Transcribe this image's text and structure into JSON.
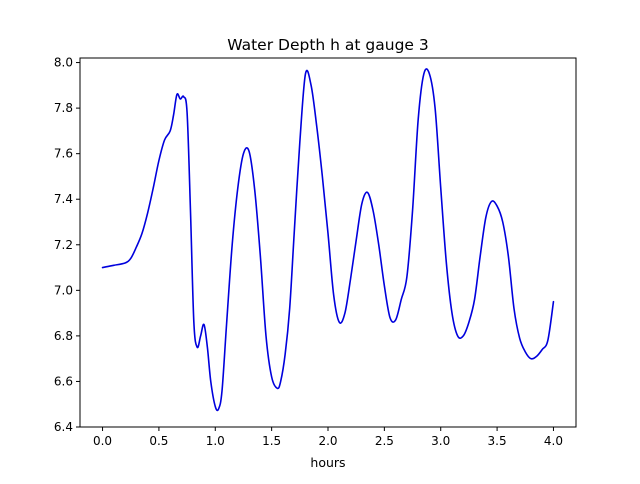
{
  "chart_data": {
    "type": "line",
    "title": "Water Depth h at gauge 3",
    "xlabel": "hours",
    "ylabel": "",
    "xlim": [
      -0.2,
      4.2
    ],
    "ylim": [
      6.4,
      8.02
    ],
    "xticks": [
      0.0,
      0.5,
      1.0,
      1.5,
      2.0,
      2.5,
      3.0,
      3.5,
      4.0
    ],
    "xtick_labels": [
      "0.0",
      "0.5",
      "1.0",
      "1.5",
      "2.0",
      "2.5",
      "3.0",
      "3.5",
      "4.0"
    ],
    "yticks": [
      6.4,
      6.6,
      6.8,
      7.0,
      7.2,
      7.4,
      7.6,
      7.8,
      8.0
    ],
    "ytick_labels": [
      "6.4",
      "6.6",
      "6.8",
      "7.0",
      "7.2",
      "7.4",
      "7.6",
      "7.8",
      "8.0"
    ],
    "grid": false,
    "legend": "none",
    "series": [
      {
        "color": "#0000dd",
        "x": [
          0.0,
          0.05,
          0.1,
          0.2,
          0.25,
          0.3,
          0.35,
          0.4,
          0.45,
          0.5,
          0.55,
          0.6,
          0.63,
          0.66,
          0.69,
          0.72,
          0.75,
          0.78,
          0.81,
          0.84,
          0.87,
          0.9,
          0.93,
          0.96,
          1.0,
          1.03,
          1.06,
          1.1,
          1.15,
          1.2,
          1.25,
          1.3,
          1.35,
          1.4,
          1.45,
          1.5,
          1.55,
          1.58,
          1.62,
          1.66,
          1.7,
          1.75,
          1.8,
          1.85,
          1.9,
          1.95,
          2.0,
          2.05,
          2.1,
          2.15,
          2.2,
          2.25,
          2.3,
          2.35,
          2.4,
          2.45,
          2.5,
          2.55,
          2.6,
          2.65,
          2.7,
          2.75,
          2.8,
          2.85,
          2.9,
          2.95,
          3.0,
          3.05,
          3.1,
          3.15,
          3.2,
          3.25,
          3.3,
          3.35,
          3.4,
          3.45,
          3.5,
          3.55,
          3.6,
          3.65,
          3.7,
          3.75,
          3.8,
          3.85,
          3.9,
          3.95,
          4.0
        ],
        "y": [
          7.1,
          7.105,
          7.11,
          7.12,
          7.14,
          7.19,
          7.25,
          7.34,
          7.45,
          7.57,
          7.66,
          7.7,
          7.77,
          7.86,
          7.84,
          7.85,
          7.78,
          7.35,
          6.86,
          6.75,
          6.8,
          6.85,
          6.75,
          6.6,
          6.49,
          6.48,
          6.56,
          6.85,
          7.2,
          7.45,
          7.6,
          7.61,
          7.44,
          7.15,
          6.8,
          6.62,
          6.57,
          6.6,
          6.72,
          6.92,
          7.25,
          7.65,
          7.95,
          7.9,
          7.72,
          7.5,
          7.25,
          6.98,
          6.86,
          6.9,
          7.05,
          7.22,
          7.38,
          7.43,
          7.35,
          7.2,
          7.02,
          6.88,
          6.87,
          6.96,
          7.06,
          7.35,
          7.75,
          7.95,
          7.95,
          7.8,
          7.45,
          7.12,
          6.9,
          6.8,
          6.8,
          6.86,
          6.96,
          7.15,
          7.32,
          7.39,
          7.37,
          7.3,
          7.15,
          6.92,
          6.79,
          6.73,
          6.7,
          6.71,
          6.74,
          6.78,
          6.95
        ]
      }
    ]
  }
}
